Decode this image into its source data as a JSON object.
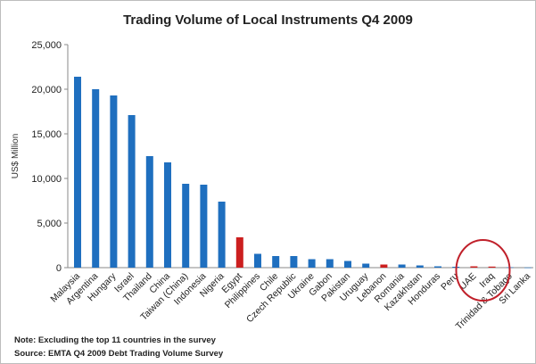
{
  "chart_data": {
    "type": "bar",
    "title": "Trading Volume of Local Instruments Q4 2009",
    "ylabel": "US$ Million",
    "xlabel": "",
    "ylim": [
      0,
      25000
    ],
    "yticks": [
      "0",
      "5,000",
      "10,000",
      "15,000",
      "20,000",
      "25,000"
    ],
    "ytick_values": [
      0,
      5000,
      10000,
      15000,
      20000,
      25000
    ],
    "grid": false,
    "legend": "none",
    "bar_color": "#1f6fbf",
    "highlight_color": "#cc1f1f",
    "annotation_ellipse_color": "#c0202a",
    "categories": [
      "Malaysia",
      "Argentina",
      "Hungary",
      "Israel",
      "Thailand",
      "China",
      "Taiwan (China)",
      "Indonesia",
      "Nigeria",
      "Egypt",
      "Philippines",
      "Chile",
      "Czech Republic",
      "Ukraine",
      "Gabon",
      "Pakistan",
      "Uruguay",
      "Lebanon",
      "Romania",
      "Kazakhstan",
      "Honduras",
      "Peru",
      "UAE",
      "Iraq",
      "Trinidad & Tobago",
      "Sri Lanka"
    ],
    "values": [
      21400,
      20000,
      19300,
      17100,
      12500,
      11800,
      9400,
      9300,
      7400,
      3400,
      1550,
      1300,
      1300,
      950,
      950,
      750,
      450,
      350,
      350,
      250,
      150,
      100,
      150,
      120,
      40,
      20
    ],
    "highlighted": [
      "Egypt",
      "Lebanon",
      "UAE",
      "Iraq"
    ],
    "circled": [
      "UAE",
      "Iraq"
    ]
  },
  "footnotes": {
    "note": "Note: Excluding the top 11 countries in the survey",
    "source": "Source: EMTA Q4 2009 Debt Trading Volume Survey"
  }
}
